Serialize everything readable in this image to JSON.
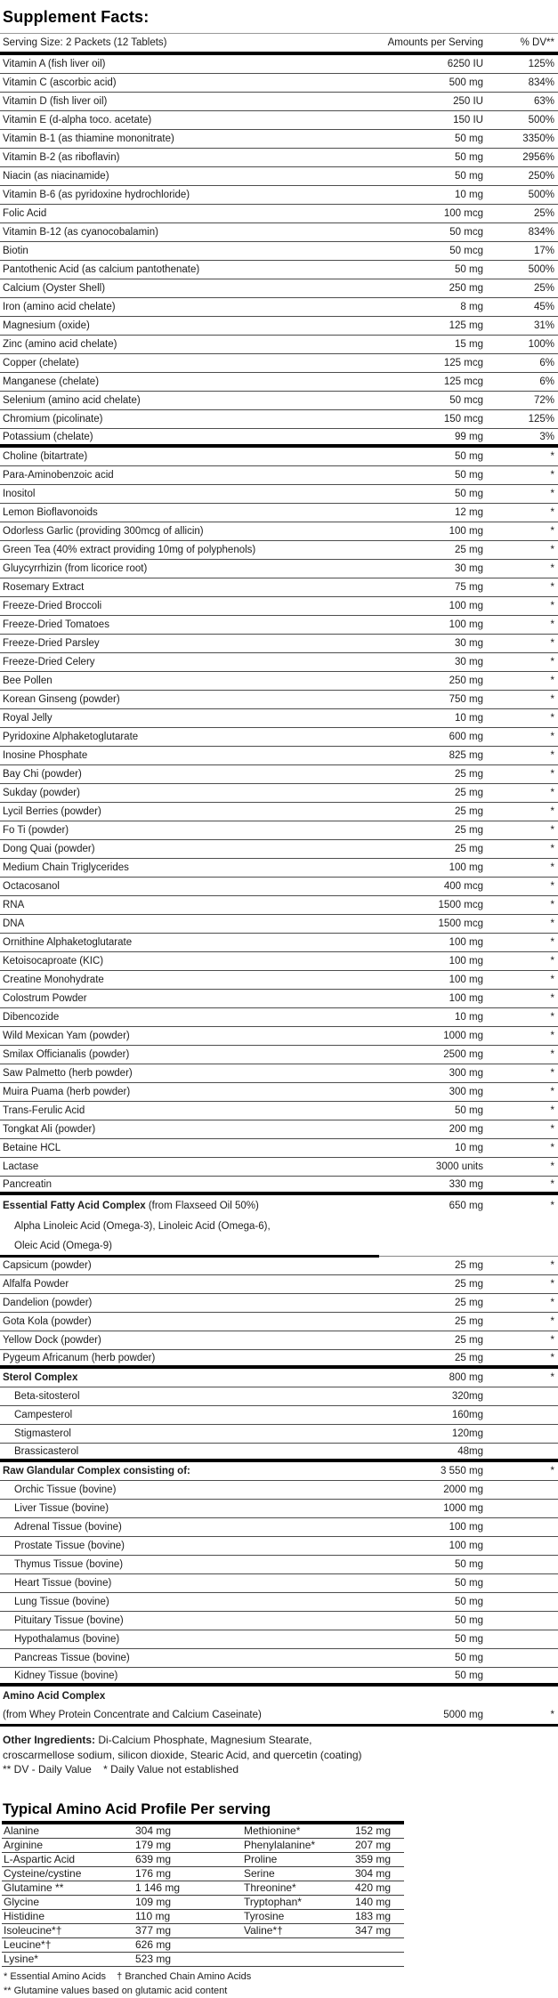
{
  "title": "Supplement Facts:",
  "header": {
    "serving": "Serving Size: 2 Packets (12 Tablets)",
    "amounts": "Amounts per Serving",
    "dv": "% DV**"
  },
  "rows": [
    {
      "l": "Vitamin A (fish liver oil)",
      "a": "6250 IU",
      "d": "125%"
    },
    {
      "l": "Vitamin C (ascorbic acid)",
      "a": "500 mg",
      "d": "834%"
    },
    {
      "l": "Vitamin D (fish liver oil)",
      "a": "250 IU",
      "d": "63%"
    },
    {
      "l": "Vitamin E (d-alpha toco. acetate)",
      "a": "150 IU",
      "d": "500%"
    },
    {
      "l": "Vitamin B-1 (as thiamine mononitrate)",
      "a": "50 mg",
      "d": "3350%"
    },
    {
      "l": "Vitamin B-2 (as riboflavin)",
      "a": "50 mg",
      "d": "2956%"
    },
    {
      "l": "Niacin (as niacinamide)",
      "a": "50 mg",
      "d": "250%"
    },
    {
      "l": "Vitamin B-6 (as pyridoxine hydrochloride)",
      "a": "10 mg",
      "d": "500%"
    },
    {
      "l": "Folic Acid",
      "a": "100 mcg",
      "d": "25%"
    },
    {
      "l": "Vitamin B-12 (as cyanocobalamin)",
      "a": "50 mcg",
      "d": "834%"
    },
    {
      "l": "Biotin",
      "a": "50 mcg",
      "d": "17%"
    },
    {
      "l": "Pantothenic Acid (as calcium pantothenate)",
      "a": "50 mg",
      "d": "500%"
    },
    {
      "l": "Calcium (Oyster Shell)",
      "a": "250 mg",
      "d": "25%"
    },
    {
      "l": "Iron (amino acid chelate)",
      "a": "8 mg",
      "d": "45%"
    },
    {
      "l": "Magnesium (oxide)",
      "a": "125 mg",
      "d": "31%"
    },
    {
      "l": "Zinc (amino acid chelate)",
      "a": "15 mg",
      "d": "100%"
    },
    {
      "l": "Copper (chelate)",
      "a": "125 mcg",
      "d": "6%"
    },
    {
      "l": "Manganese (chelate)",
      "a": "125 mcg",
      "d": "6%"
    },
    {
      "l": "Selenium (amino acid chelate)",
      "a": "50 mcg",
      "d": "72%"
    },
    {
      "l": "Chromium (picolinate)",
      "a": "150 mcg",
      "d": "125%"
    },
    {
      "l": "Potassium (chelate)",
      "a": "99 mg",
      "d": "3%",
      "after": "thick"
    },
    {
      "l": "Choline (bitartrate)",
      "a": "50 mg",
      "d": "*"
    },
    {
      "l": "Para-Aminobenzoic acid",
      "a": "50 mg",
      "d": "*"
    },
    {
      "l": "Inositol",
      "a": "50 mg",
      "d": "*"
    },
    {
      "l": "Lemon Bioflavonoids",
      "a": "12 mg",
      "d": "*"
    },
    {
      "l": "Odorless Garlic (providing 300mcg of allicin)",
      "a": "100 mg",
      "d": "*"
    },
    {
      "l": "Green Tea (40% extract providing 10mg of polyphenols)",
      "a": "25 mg",
      "d": "*"
    },
    {
      "l": "Gluycyrrhizin (from licorice root)",
      "a": "30 mg",
      "d": "*"
    },
    {
      "l": "Rosemary Extract",
      "a": "75 mg",
      "d": "*"
    },
    {
      "l": "Freeze-Dried Broccoli",
      "a": "100 mg",
      "d": "*"
    },
    {
      "l": "Freeze-Dried Tomatoes",
      "a": "100 mg",
      "d": "*"
    },
    {
      "l": "Freeze-Dried Parsley",
      "a": "30 mg",
      "d": "*"
    },
    {
      "l": "Freeze-Dried Celery",
      "a": "30 mg",
      "d": "*"
    },
    {
      "l": "Bee Pollen",
      "a": "250 mg",
      "d": "*"
    },
    {
      "l": "Korean Ginseng (powder)",
      "a": "750 mg",
      "d": "*"
    },
    {
      "l": "Royal Jelly",
      "a": "10 mg",
      "d": "*"
    },
    {
      "l": "Pyridoxine Alphaketoglutarate",
      "a": "600 mg",
      "d": "*"
    },
    {
      "l": "Inosine Phosphate",
      "a": "825 mg",
      "d": "*"
    },
    {
      "l": "Bay Chi (powder)",
      "a": "25 mg",
      "d": "*"
    },
    {
      "l": "Sukday (powder)",
      "a": "25 mg",
      "d": "*"
    },
    {
      "l": "Lycil Berries (powder)",
      "a": "25 mg",
      "d": "*"
    },
    {
      "l": "Fo Ti (powder)",
      "a": "25 mg",
      "d": "*"
    },
    {
      "l": "Dong Quai (powder)",
      "a": "25 mg",
      "d": "*"
    },
    {
      "l": "Medium Chain Triglycerides",
      "a": "100 mg",
      "d": "*"
    },
    {
      "l": "Octacosanol",
      "a": "400 mcg",
      "d": "*"
    },
    {
      "l": "RNA",
      "a": "1500 mcg",
      "d": "*"
    },
    {
      "l": "DNA",
      "a": "1500 mcg",
      "d": "*"
    },
    {
      "l": "Ornithine Alphaketoglutarate",
      "a": "100 mg",
      "d": "*"
    },
    {
      "l": "Ketoisocaproate (KIC)",
      "a": "100 mg",
      "d": "*"
    },
    {
      "l": "Creatine Monohydrate",
      "a": "100 mg",
      "d": "*"
    },
    {
      "l": "Colostrum Powder",
      "a": "100 mg",
      "d": "*"
    },
    {
      "l": "Dibencozide",
      "a": "10 mg",
      "d": "*"
    },
    {
      "l": "Wild Mexican Yam (powder)",
      "a": "1000 mg",
      "d": "*"
    },
    {
      "l": "Smilax Officianalis (powder)",
      "a": "2500 mg",
      "d": "*"
    },
    {
      "l": "Saw Palmetto (herb powder)",
      "a": "300 mg",
      "d": "*"
    },
    {
      "l": "Muira Puama (herb powder)",
      "a": "300 mg",
      "d": "*"
    },
    {
      "l": "Trans-Ferulic Acid",
      "a": "50 mg",
      "d": "*"
    },
    {
      "l": "Tongkat Ali (powder)",
      "a": "200 mg",
      "d": "*"
    },
    {
      "l": "Betaine HCL",
      "a": "10 mg",
      "d": "*"
    },
    {
      "l": "Lactase",
      "a": "3000 units",
      "d": "*"
    },
    {
      "l": "Pancreatin",
      "a": "330 mg",
      "d": "*",
      "after": "thick"
    },
    {
      "b": "Essential Fatty Acid Complex",
      "r": " (from Flaxseed Oil 50%)",
      "a": "650 mg",
      "d": "*",
      "after": "none",
      "size": "tall"
    },
    {
      "l": "Alpha Linoleic Acid (Omega-3), Linoleic Acid (Omega-6),",
      "i": true,
      "after": "none",
      "size": "tall"
    },
    {
      "l": "Oleic Acid (Omega-9)",
      "i": true,
      "after": "thickpartial",
      "size": "tall"
    },
    {
      "l": "Capsicum (powder)",
      "a": "25 mg",
      "d": "*"
    },
    {
      "l": "Alfalfa Powder",
      "a": "25 mg",
      "d": "*"
    },
    {
      "l": "Dandelion (powder)",
      "a": "25 mg",
      "d": "*"
    },
    {
      "l": "Gota Kola (powder)",
      "a": "25 mg",
      "d": "*"
    },
    {
      "l": "Yellow Dock (powder)",
      "a": "25 mg",
      "d": "*"
    },
    {
      "l": "Pygeum Africanum (herb powder)",
      "a": "25 mg",
      "d": "*",
      "after": "thick"
    },
    {
      "b": "Sterol Complex",
      "a": "800 mg",
      "d": "*"
    },
    {
      "l": "Beta-sitosterol",
      "a": "320mg",
      "i": true
    },
    {
      "l": "Campesterol",
      "a": "160mg",
      "i": true
    },
    {
      "l": "Stigmasterol",
      "a": "120mg",
      "i": true
    },
    {
      "l": "Brassicasterol",
      "a": "48mg",
      "i": true,
      "after": "thick"
    },
    {
      "b": "Raw Glandular Complex consisting of:",
      "a": "3 550 mg",
      "d": "*"
    },
    {
      "l": "Orchic Tissue (bovine)",
      "a": "2000 mg",
      "i": true
    },
    {
      "l": "Liver Tissue (bovine)",
      "a": "1000 mg",
      "i": true
    },
    {
      "l": "Adrenal Tissue (bovine)",
      "a": "100 mg",
      "i": true
    },
    {
      "l": "Prostate Tissue (bovine)",
      "a": "100 mg",
      "i": true
    },
    {
      "l": "Thymus Tissue (bovine)",
      "a": "50 mg",
      "i": true
    },
    {
      "l": "Heart Tissue (bovine)",
      "a": "50 mg",
      "i": true
    },
    {
      "l": "Lung Tissue (bovine)",
      "a": "50 mg",
      "i": true
    },
    {
      "l": "Pituitary Tissue (bovine)",
      "a": "50 mg",
      "i": true
    },
    {
      "l": "Hypothalamus (bovine)",
      "a": "50 mg",
      "i": true
    },
    {
      "l": "Pancreas Tissue (bovine)",
      "a": "50 mg",
      "i": true
    },
    {
      "l": "Kidney Tissue (bovine)",
      "a": "50 mg",
      "i": true,
      "after": "thick"
    },
    {
      "b": "Amino Acid Complex",
      "after": "none"
    },
    {
      "l": "(from Whey Protein Concentrate and Calcium Caseinate)",
      "a": "5000 mg",
      "d": "*",
      "after": "medium",
      "size": "xtall"
    }
  ],
  "other": {
    "bold": "Other Ingredients:",
    "rest": " Di-Calcium Phosphate, Magnesium Stearate,",
    "line2": "croscarmellose sodium, silicon dioxide, Stearic Acid, and quercetin (coating)",
    "line3": "** DV - Daily Value    * Daily Value not established"
  },
  "amino": {
    "title": "Typical Amino Acid Profile Per serving",
    "rows": [
      [
        "Alanine",
        "304 mg",
        "Methionine*",
        "152 mg"
      ],
      [
        "Arginine",
        "179 mg",
        "Phenylalanine*",
        "207 mg"
      ],
      [
        "L-Aspartic Acid",
        "639 mg",
        "Proline",
        "359 mg"
      ],
      [
        "Cysteine/cystine",
        "176 mg",
        "Serine",
        "304 mg"
      ],
      [
        "Glutamine **",
        "1 146 mg",
        "Threonine*",
        "420 mg"
      ],
      [
        "Glycine",
        "109 mg",
        "Tryptophan*",
        "140 mg"
      ],
      [
        "Histidine",
        "110 mg",
        "Tyrosine",
        "183 mg"
      ],
      [
        "Isoleucine*†",
        "377 mg",
        "Valine*†",
        "347 mg"
      ],
      [
        "Leucine*†",
        "626 mg",
        "",
        ""
      ],
      [
        "Lysine*",
        "523 mg",
        "",
        ""
      ]
    ],
    "note1": "* Essential Amino Acids    † Branched Chain Amino Acids",
    "note2": "** Glutamine values based on glutamic acid content"
  }
}
